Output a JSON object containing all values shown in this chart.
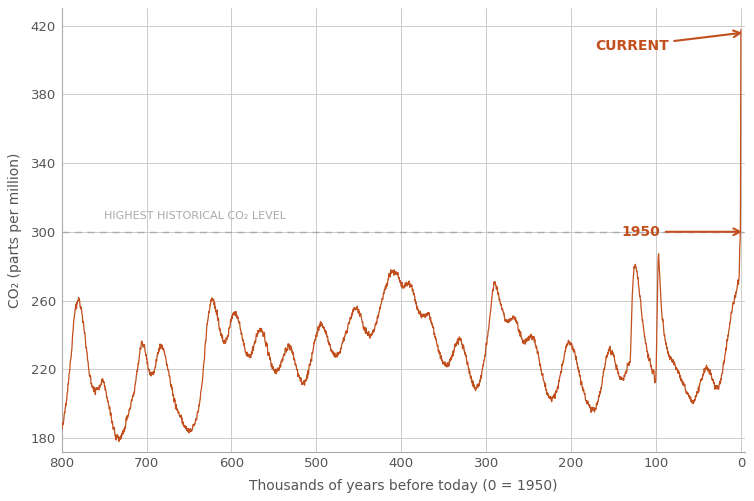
{
  "line_color": "#C2501E",
  "dashed_color": "#aaaaaa",
  "background_color": "#ffffff",
  "grid_color": "#cccccc",
  "xlabel": "Thousands of years before today (0 = 1950)",
  "ylabel": "CO₂ (parts per million)",
  "xlim": [
    800,
    -5
  ],
  "ylim": [
    172,
    430
  ],
  "yticks": [
    180,
    220,
    260,
    300,
    340,
    380,
    420
  ],
  "xticks": [
    800,
    700,
    600,
    500,
    400,
    300,
    200,
    100,
    0
  ],
  "dashed_y": 300,
  "dashed_label_1": "HIGHEST HISTORICAL CO₂ LEVEL",
  "annotation_current": "CURRENT",
  "annotation_1950": "1950",
  "annotation_color": "#C2501E",
  "tick_color": "#555555",
  "label_color": "#555555"
}
